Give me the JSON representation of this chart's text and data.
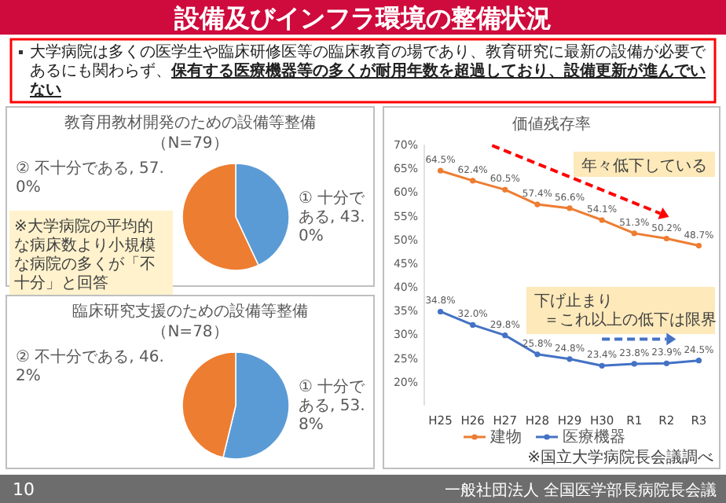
{
  "chart_data": [
    {
      "type": "other",
      "title": "設備及びインフラ環境の整備状況",
      "annotations": [
        "大学病院は多くの医学生や臨床研修医等の臨床教育の場であり、教育研究に最新の設備が必要であるにも関わらず、",
        "保有する医療機器等の多くが耐用年数を超過しており、設備更新が進んでいない",
        "一般社団法人 全国医学部長病院長会議",
        "10"
      ]
    },
    {
      "type": "pie",
      "title": "教育用教材開発のための設備等整備",
      "subtitle": "（N=79）",
      "categories": [
        "① 十分である",
        "② 不十分である"
      ],
      "values": [
        43.0,
        57.0
      ],
      "value_labels": [
        "43.0%",
        "57.0%"
      ],
      "colors": [
        "#5b9bd5",
        "#ed7d31"
      ],
      "annotations": [
        "※大学病院の平均的な病床数より小規模な病院の多くが「不十分」と回答"
      ]
    },
    {
      "type": "pie",
      "title": "臨床研究支援のための設備等整備",
      "subtitle": "（N=78）",
      "categories": [
        "① 十分である",
        "② 不十分である"
      ],
      "values": [
        53.8,
        46.2
      ],
      "value_labels": [
        "53.8%",
        "46.2%"
      ],
      "colors": [
        "#5b9bd5",
        "#ed7d31"
      ]
    },
    {
      "type": "line",
      "title": "価値残存率",
      "categories": [
        "H25",
        "H26",
        "H27",
        "H28",
        "H29",
        "H30",
        "R1",
        "R2",
        "R3"
      ],
      "ylim": [
        15,
        70
      ],
      "yticks": [
        {
          "value": 20,
          "label": "20%"
        },
        {
          "value": 25,
          "label": "25%"
        },
        {
          "value": 30,
          "label": "30%"
        },
        {
          "value": 35,
          "label": "35%"
        },
        {
          "value": 40,
          "label": "40%"
        },
        {
          "value": 45,
          "label": "45%"
        },
        {
          "value": 50,
          "label": "50%"
        },
        {
          "value": 55,
          "label": "55%"
        },
        {
          "value": 60,
          "label": "60%"
        },
        {
          "value": 65,
          "label": "65%"
        },
        {
          "value": 70,
          "label": "70%"
        }
      ],
      "marker": "circle",
      "legend": "bottom",
      "series": [
        {
          "name": "建物",
          "color": "#ed7d31",
          "values": [
            64.5,
            62.4,
            60.5,
            57.4,
            56.6,
            54.1,
            51.3,
            50.2,
            48.7
          ],
          "value_labels": [
            "64.5%",
            "62.4%",
            "60.5%",
            "57.4%",
            "56.6%",
            "54.1%",
            "51.3%",
            "50.2%",
            "48.7%"
          ]
        },
        {
          "name": "医療機器",
          "color": "#4472c4",
          "values": [
            34.8,
            32.0,
            29.8,
            25.8,
            24.8,
            23.4,
            23.8,
            23.9,
            24.5
          ],
          "value_labels": [
            "34.8%",
            "32.0%",
            "29.8%",
            "25.8%",
            "24.8%",
            "23.4%",
            "23.8%",
            "23.9%",
            "24.5%"
          ]
        }
      ],
      "annotations": [
        "年々低下している",
        "下げ止まり",
        "＝これ以上の低下は限界",
        "※国立大学病院長会議調べ"
      ]
    }
  ]
}
